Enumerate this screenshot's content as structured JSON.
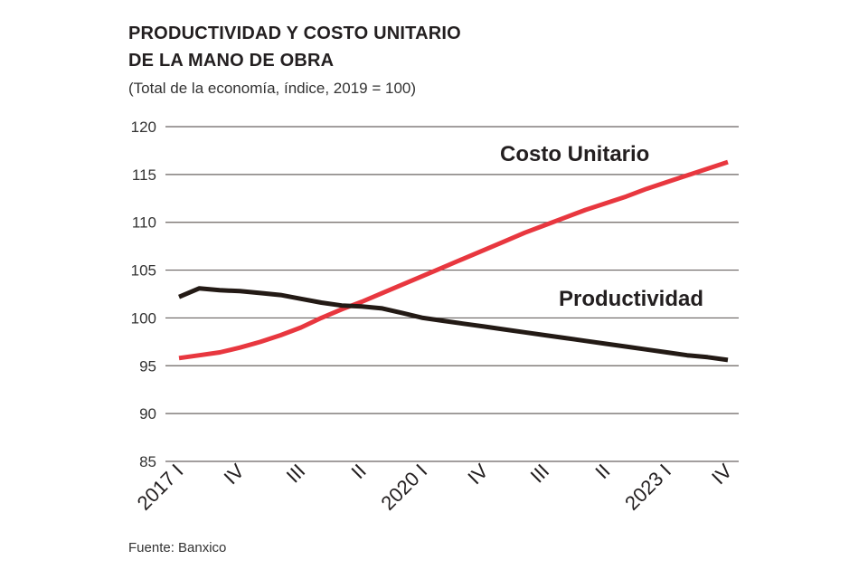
{
  "chart_data": {
    "type": "line",
    "title": "PRODUCTIVIDAD Y COSTO UNITARIO DE LA MANO DE OBRA",
    "title_lines": [
      "PRODUCTIVIDAD Y COSTO UNITARIO",
      "DE LA MANO DE OBRA"
    ],
    "subtitle": "(Total de la economía, índice, 2019 = 100)",
    "source": "Fuente: Banxico",
    "xlabel": "",
    "ylabel": "",
    "ylim": [
      85,
      120
    ],
    "y_ticks": [
      120,
      115,
      110,
      105,
      100,
      95,
      90,
      85
    ],
    "x_ticks": [
      {
        "quarter": 0,
        "label": "2017 I"
      },
      {
        "quarter": 3,
        "label": "IV"
      },
      {
        "quarter": 6,
        "label": "III"
      },
      {
        "quarter": 9,
        "label": "II"
      },
      {
        "quarter": 12,
        "label": "2020 I"
      },
      {
        "quarter": 15,
        "label": "IV"
      },
      {
        "quarter": 18,
        "label": "III"
      },
      {
        "quarter": 21,
        "label": "II"
      },
      {
        "quarter": 24,
        "label": "2023 I"
      },
      {
        "quarter": 27,
        "label": "IV"
      }
    ],
    "grid": true,
    "series": [
      {
        "name": "Costo Unitario",
        "color": "#e8373f",
        "values": [
          95.8,
          96.1,
          96.4,
          96.9,
          97.5,
          98.2,
          99.0,
          100.0,
          100.9,
          101.7,
          102.6,
          103.5,
          104.4,
          105.3,
          106.2,
          107.1,
          108.0,
          108.9,
          109.7,
          110.5,
          111.3,
          112.0,
          112.7,
          113.5,
          114.2,
          114.9,
          115.6,
          116.3
        ]
      },
      {
        "name": "Productividad",
        "color": "#231a15",
        "values": [
          102.2,
          103.1,
          102.9,
          102.8,
          102.6,
          102.4,
          102.0,
          101.6,
          101.3,
          101.2,
          101.0,
          100.5,
          100.0,
          99.7,
          99.4,
          99.1,
          98.8,
          98.5,
          98.2,
          97.9,
          97.6,
          97.3,
          97.0,
          96.7,
          96.4,
          96.1,
          95.9,
          95.6
        ]
      }
    ]
  }
}
